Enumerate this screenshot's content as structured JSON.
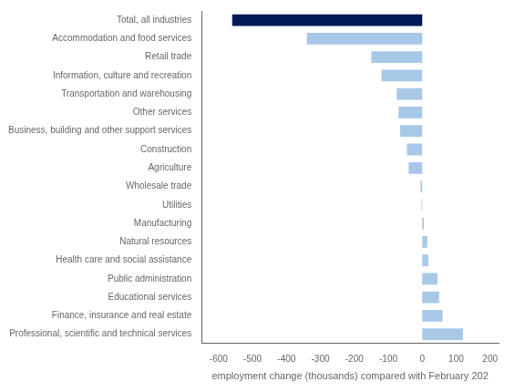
{
  "chart_data": {
    "type": "bar",
    "orientation": "horizontal",
    "xlabel": "employment change (thousands) compared with February 202",
    "categories": [
      "Total, all industries",
      "Accommodation and food services",
      "Retail trade",
      "Information, culture and recreation",
      "Transportation and warehousing",
      "Other services",
      "Business, building and other support services",
      "Construction",
      "Agriculture",
      "Wholesale trade",
      "Utilities",
      "Manufacturing",
      "Natural resources",
      "Health care and social assistance",
      "Public administration",
      "Educational services",
      "Finance, insurance and real estate",
      "Professional, scientific and technical services"
    ],
    "values": [
      -560,
      -340,
      -150,
      -120,
      -75,
      -70,
      -65,
      -45,
      -40,
      -5,
      -2,
      5,
      15,
      18,
      45,
      50,
      60,
      120
    ],
    "colors": [
      "#001A57",
      "#A8C8E8",
      "#A8C8E8",
      "#A8C8E8",
      "#A8C8E8",
      "#A8C8E8",
      "#A8C8E8",
      "#A8C8E8",
      "#A8C8E8",
      "#A8C8E8",
      "#A8C8E8",
      "#A8C8E8",
      "#A8C8E8",
      "#A8C8E8",
      "#A8C8E8",
      "#A8C8E8",
      "#A8C8E8",
      "#A8C8E8"
    ],
    "xlim": [
      -650,
      225
    ],
    "xticks": [
      -600,
      -500,
      -400,
      -300,
      -200,
      -100,
      0,
      100,
      200
    ],
    "grid": false
  }
}
